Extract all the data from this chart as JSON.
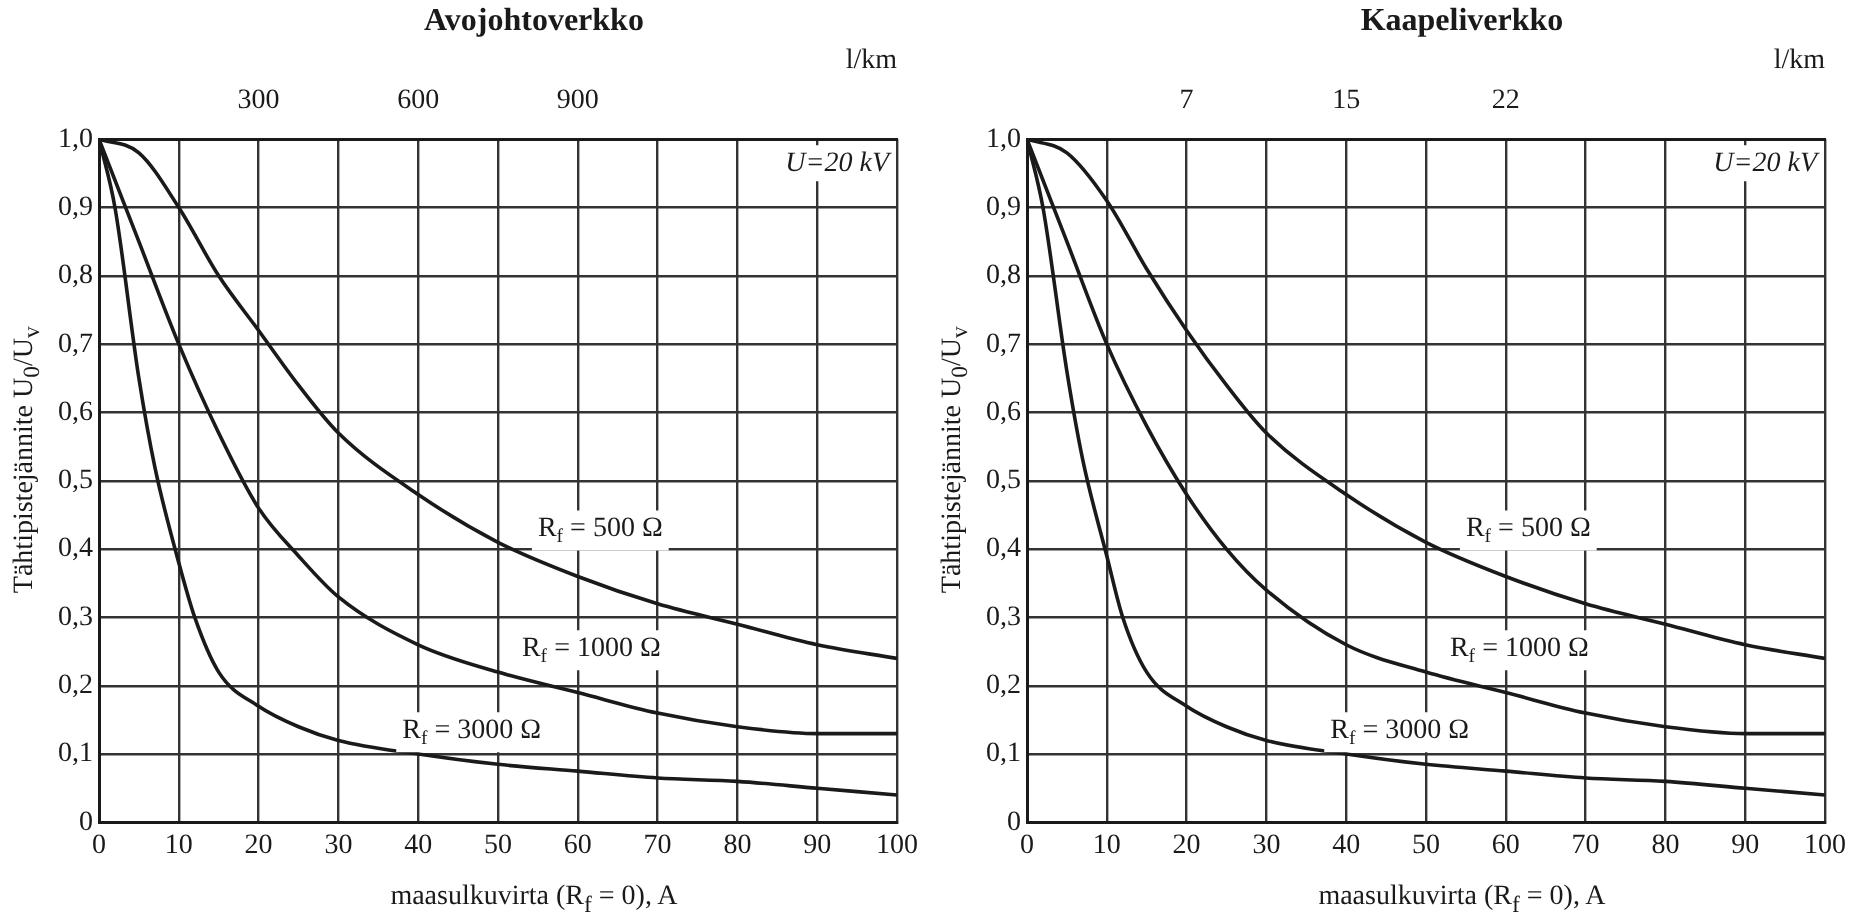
{
  "chart_data": [
    {
      "type": "line",
      "title": "Avojohtoverkko",
      "xlabel": "maasulkuvirta (R$_{f}$ = 0), A",
      "ylabel": "Tähtipistejännite U$_{0}$/U$_{v}$",
      "x2label": "l/km",
      "annotations": [
        "U=20 kV"
      ],
      "x": [
        0,
        5,
        10,
        15,
        20,
        25,
        30,
        40,
        50,
        60,
        70,
        80,
        90,
        100
      ],
      "xlim": [
        0,
        100
      ],
      "xticks": [
        0,
        10,
        20,
        30,
        40,
        50,
        60,
        70,
        80,
        90,
        100
      ],
      "x2lim": [
        0,
        1500
      ],
      "x2ticks": [
        300,
        600,
        900
      ],
      "ylim": [
        0,
        1
      ],
      "yticks": [
        0,
        {
          "value": 0.1,
          "label": "0,1"
        },
        {
          "value": 0.2,
          "label": "0,2"
        },
        {
          "value": 0.3,
          "label": "0,3"
        },
        {
          "value": 0.4,
          "label": "0,4"
        },
        {
          "value": 0.5,
          "label": "0,5"
        },
        {
          "value": 0.6,
          "label": "0,6"
        },
        {
          "value": 0.7,
          "label": "0,7"
        },
        {
          "value": 0.8,
          "label": "0,8"
        },
        {
          "value": 0.9,
          "label": "0,9"
        },
        {
          "value": 1,
          "label": "1,0"
        }
      ],
      "grid": true,
      "marker": "none",
      "line_style": "solid",
      "legend": false,
      "series": [
        {
          "name": "R$_{f}$ = 500 Ω",
          "color": "#1a1a1a",
          "values": [
            1.0,
            0.98,
            0.9,
            0.8,
            0.72,
            0.64,
            0.57,
            0.48,
            0.41,
            0.36,
            0.32,
            0.29,
            0.26,
            0.24
          ]
        },
        {
          "name": "R$_{f}$ = 1000 Ω",
          "color": "#1a1a1a",
          "values": [
            1.0,
            0.85,
            0.7,
            0.57,
            0.46,
            0.39,
            0.33,
            0.26,
            0.22,
            0.19,
            0.16,
            0.14,
            0.13,
            0.13
          ]
        },
        {
          "name": "R$_{f}$ = 3000 Ω",
          "color": "#1a1a1a",
          "x": [
            0,
            2,
            5,
            7,
            10,
            12,
            15,
            20,
            25,
            30,
            40,
            50,
            60,
            70,
            80,
            90,
            100
          ],
          "values": [
            1.0,
            0.9,
            0.65,
            0.52,
            0.38,
            0.3,
            0.22,
            0.17,
            0.14,
            0.12,
            0.1,
            0.085,
            0.075,
            0.065,
            0.06,
            0.05,
            0.04
          ]
        }
      ]
    },
    {
      "type": "line",
      "title": "Kaapeliverkko",
      "xlabel": "maasulkuvirta (R$_{f}$ = 0), A",
      "ylabel": "Tähtipistejännite U$_{0}$/U$_{v}$",
      "x2label": "l/km",
      "annotations": [
        "U=20 kV"
      ],
      "x": [
        0,
        5,
        10,
        15,
        20,
        25,
        30,
        40,
        50,
        60,
        70,
        80,
        90,
        100
      ],
      "xlim": [
        0,
        100
      ],
      "xticks": [
        0,
        10,
        20,
        30,
        40,
        50,
        60,
        70,
        80,
        90,
        100
      ],
      "x2lim": [
        0,
        37.5
      ],
      "x2ticks": [
        {
          "value": 7.5,
          "label": "7"
        },
        15,
        {
          "value": 22.5,
          "label": "22"
        }
      ],
      "ylim": [
        0,
        1
      ],
      "yticks": [
        0,
        {
          "value": 0.1,
          "label": "0,1"
        },
        {
          "value": 0.2,
          "label": "0,2"
        },
        {
          "value": 0.3,
          "label": "0,3"
        },
        {
          "value": 0.4,
          "label": "0,4"
        },
        {
          "value": 0.5,
          "label": "0,5"
        },
        {
          "value": 0.6,
          "label": "0,6"
        },
        {
          "value": 0.7,
          "label": "0,7"
        },
        {
          "value": 0.8,
          "label": "0,8"
        },
        {
          "value": 0.9,
          "label": "0,9"
        },
        {
          "value": 1,
          "label": "1,0"
        }
      ],
      "grid": true,
      "marker": "none",
      "line_style": "solid",
      "legend": false,
      "series": [
        {
          "name": "R$_{f}$ = 500 Ω",
          "color": "#1a1a1a",
          "values": [
            1.0,
            0.98,
            0.91,
            0.81,
            0.72,
            0.64,
            0.57,
            0.48,
            0.41,
            0.36,
            0.32,
            0.29,
            0.26,
            0.24
          ]
        },
        {
          "name": "R$_{f}$ = 1000 Ω",
          "color": "#1a1a1a",
          "values": [
            1.0,
            0.85,
            0.7,
            0.58,
            0.48,
            0.4,
            0.34,
            0.26,
            0.22,
            0.19,
            0.16,
            0.14,
            0.13,
            0.13
          ]
        },
        {
          "name": "R$_{f}$ = 3000 Ω",
          "color": "#1a1a1a",
          "x": [
            0,
            2,
            5,
            7,
            10,
            12,
            15,
            20,
            25,
            30,
            40,
            50,
            60,
            70,
            80,
            90,
            100
          ],
          "values": [
            1.0,
            0.9,
            0.66,
            0.53,
            0.39,
            0.3,
            0.22,
            0.17,
            0.14,
            0.12,
            0.1,
            0.085,
            0.075,
            0.065,
            0.06,
            0.05,
            0.04
          ]
        }
      ]
    }
  ]
}
